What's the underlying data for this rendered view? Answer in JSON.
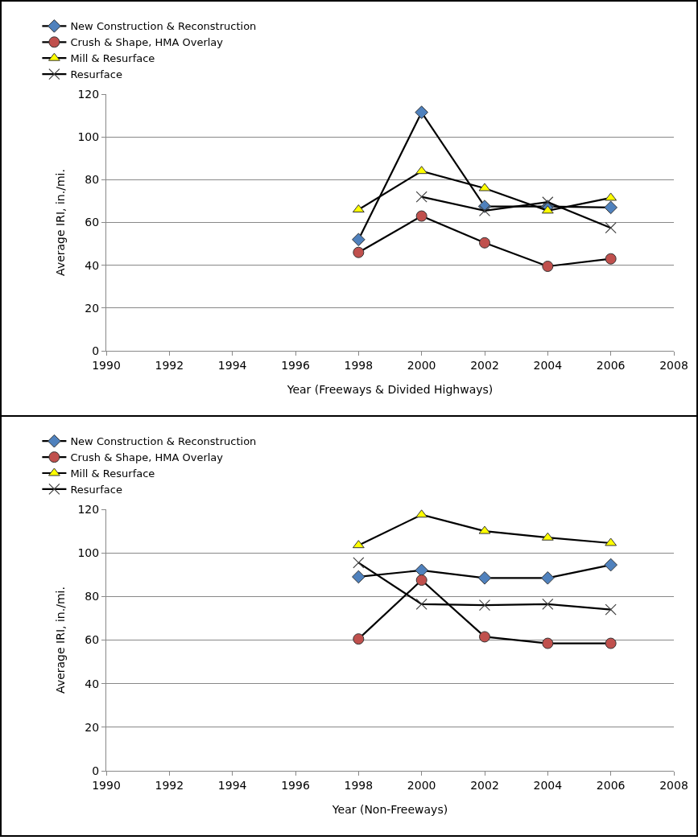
{
  "chart_data": [
    {
      "type": "line",
      "xlabel": "Year (Freeways & Divided Highways)",
      "ylabel": "Average IRI, in./mi.",
      "x": [
        1998,
        2000,
        2002,
        2004,
        2006
      ],
      "xlim": [
        1990,
        2008
      ],
      "xticks": [
        1990,
        1992,
        1994,
        1996,
        1998,
        2000,
        2002,
        2004,
        2006,
        2008
      ],
      "ylim": [
        0,
        120
      ],
      "yticks": [
        0,
        20,
        40,
        60,
        80,
        100,
        120
      ],
      "grid": "y",
      "legend": "top",
      "line_style": "solid",
      "series": [
        {
          "name": "New Construction & Reconstruction",
          "color": "#4f81bd",
          "marker": "diamond",
          "values": [
            52,
            111.5,
            67.5,
            67.5,
            67
          ]
        },
        {
          "name": "Crush & Shape, HMA Overlay",
          "color": "#c0504d",
          "marker": "circle",
          "values": [
            46,
            63,
            50.5,
            39.5,
            43
          ]
        },
        {
          "name": "Mill & Resurface",
          "color": "#ffff00",
          "marker": "triangle",
          "values": [
            66,
            84,
            76,
            65.5,
            71.5
          ]
        },
        {
          "name": "Resurface",
          "color": "#404040",
          "marker": "cross",
          "values": [
            null,
            72,
            65.5,
            69.5,
            57.5
          ]
        }
      ]
    },
    {
      "type": "line",
      "xlabel": "Year (Non-Freeways)",
      "ylabel": "Average IRI, in./mi.",
      "x": [
        1998,
        2000,
        2002,
        2004,
        2006
      ],
      "xlim": [
        1990,
        2008
      ],
      "xticks": [
        1990,
        1992,
        1994,
        1996,
        1998,
        2000,
        2002,
        2004,
        2006,
        2008
      ],
      "ylim": [
        0,
        120
      ],
      "yticks": [
        0,
        20,
        40,
        60,
        80,
        100,
        120
      ],
      "grid": "y",
      "legend": "top",
      "line_style": "solid",
      "series": [
        {
          "name": "New Construction & Reconstruction",
          "color": "#4f81bd",
          "marker": "diamond",
          "values": [
            89,
            92,
            88.5,
            88.5,
            94.5
          ]
        },
        {
          "name": "Crush & Shape, HMA Overlay",
          "color": "#c0504d",
          "marker": "circle",
          "values": [
            60.5,
            87.5,
            61.5,
            58.5,
            58.5
          ]
        },
        {
          "name": "Mill & Resurface",
          "color": "#ffff00",
          "marker": "triangle",
          "values": [
            103.5,
            117.5,
            110,
            107,
            104.5
          ]
        },
        {
          "name": "Resurface",
          "color": "#404040",
          "marker": "cross",
          "values": [
            95.5,
            76.5,
            76,
            76.5,
            74
          ]
        }
      ]
    }
  ]
}
